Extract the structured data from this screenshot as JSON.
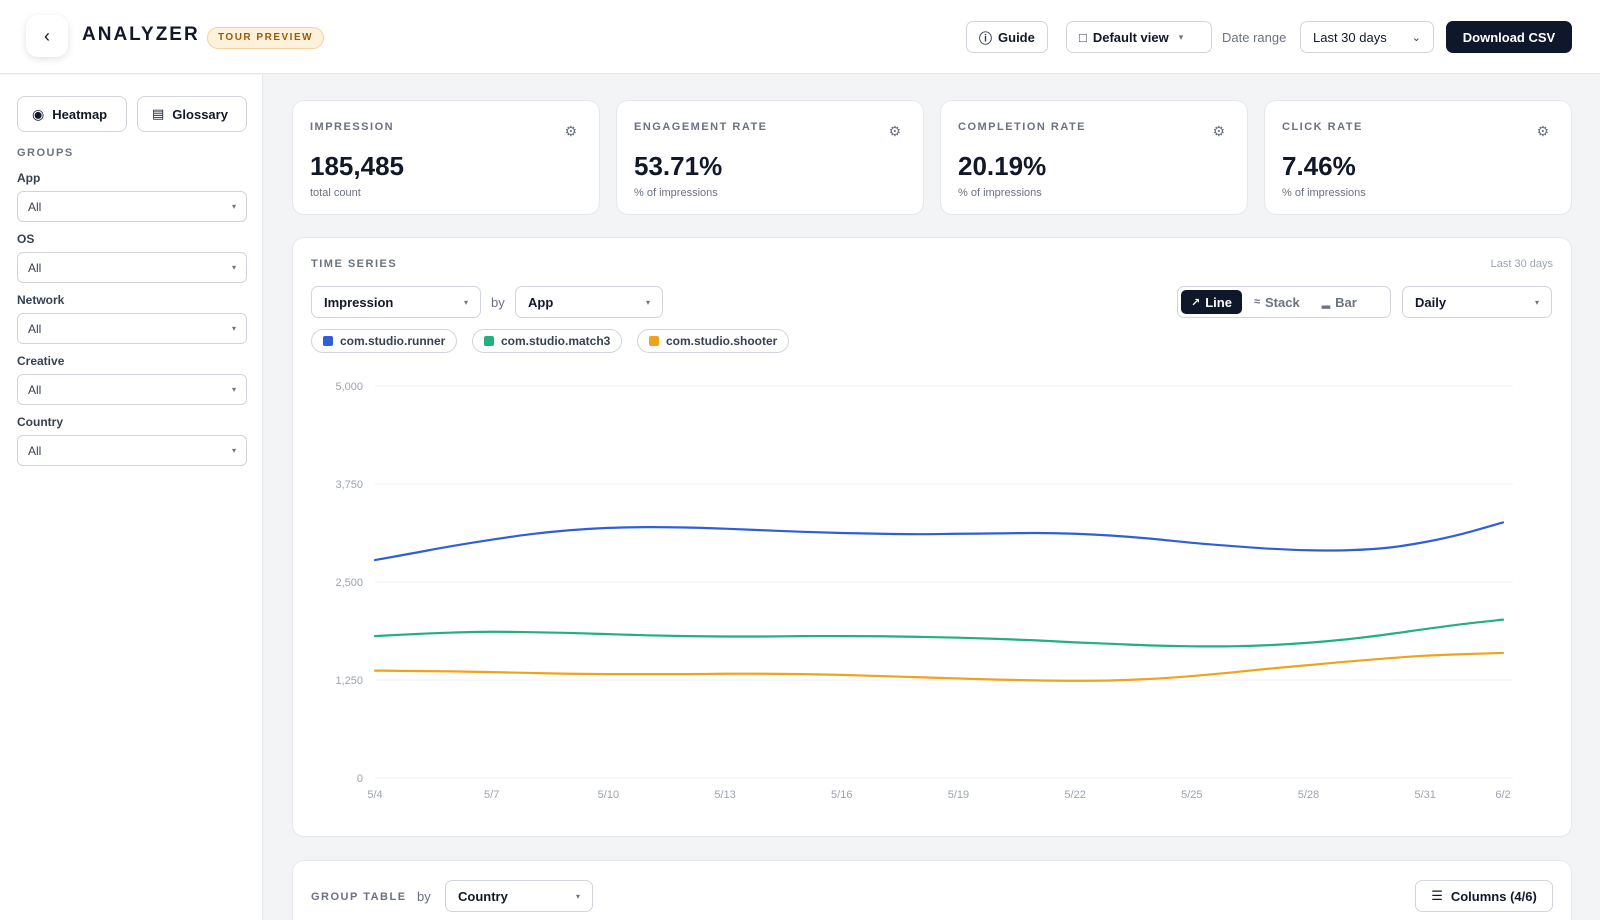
{
  "header": {
    "title": "ANALYZER",
    "badge": "TOUR PREVIEW",
    "guide_label": "Guide",
    "view_label": "Default view",
    "date_range_label": "Date range",
    "date_range_value": "Last 30 days",
    "download_label": "Download CSV"
  },
  "sidebar": {
    "heatmap_label": "Heatmap",
    "glossary_label": "Glossary",
    "groups_title": "GROUPS",
    "filters": [
      {
        "label": "App",
        "value": "All"
      },
      {
        "label": "OS",
        "value": "All"
      },
      {
        "label": "Network",
        "value": "All"
      },
      {
        "label": "Creative",
        "value": "All"
      },
      {
        "label": "Country",
        "value": "All"
      }
    ]
  },
  "kpis": [
    {
      "label": "IMPRESSION",
      "value": "185,485",
      "sub": "total count"
    },
    {
      "label": "ENGAGEMENT RATE",
      "value": "53.71%",
      "sub": "% of impressions"
    },
    {
      "label": "COMPLETION RATE",
      "value": "20.19%",
      "sub": "% of impressions"
    },
    {
      "label": "CLICK RATE",
      "value": "7.46%",
      "sub": "% of impressions"
    }
  ],
  "timeseries": {
    "title": "TIME SERIES",
    "range": "Last 30 days",
    "metric_value": "Impression",
    "by_label": "by",
    "group_value": "App",
    "modes": [
      "Line",
      "Stack",
      "Bar"
    ],
    "active_mode": "Line",
    "granularity": "Daily"
  },
  "chart_data": {
    "type": "line",
    "ylim": [
      0,
      5000
    ],
    "yticks": [
      "5,000",
      "3,750",
      "2,500",
      "1,250",
      "0"
    ],
    "ytick_values": [
      5000,
      3750,
      2500,
      1250,
      0
    ],
    "x": [
      "5/4",
      "5/5",
      "5/6",
      "5/7",
      "5/8",
      "5/9",
      "5/10",
      "5/11",
      "5/12",
      "5/13",
      "5/14",
      "5/15",
      "5/16",
      "5/17",
      "5/18",
      "5/19",
      "5/20",
      "5/21",
      "5/22",
      "5/23",
      "5/24",
      "5/25",
      "5/26",
      "5/27",
      "5/28",
      "5/29",
      "5/30",
      "5/31",
      "6/1",
      "6/2"
    ],
    "xtick_labels": [
      "5/4",
      "5/7",
      "5/10",
      "5/13",
      "5/16",
      "5/19",
      "5/22",
      "5/25",
      "5/28",
      "5/31",
      "6/2"
    ],
    "series": [
      {
        "name": "com.studio.runner",
        "color": "#2f5fd8",
        "values": [
          2780,
          2870,
          2960,
          3040,
          3110,
          3160,
          3190,
          3200,
          3195,
          3180,
          3160,
          3140,
          3125,
          3115,
          3110,
          3115,
          3120,
          3125,
          3115,
          3090,
          3050,
          3000,
          2960,
          2925,
          2905,
          2905,
          2935,
          3010,
          3120,
          3260
        ]
      },
      {
        "name": "com.studio.match3",
        "color": "#22b07d",
        "values": [
          1810,
          1835,
          1855,
          1865,
          1860,
          1850,
          1835,
          1820,
          1810,
          1805,
          1805,
          1810,
          1810,
          1808,
          1800,
          1790,
          1775,
          1755,
          1730,
          1710,
          1690,
          1680,
          1680,
          1695,
          1725,
          1770,
          1830,
          1900,
          1965,
          2020
        ]
      },
      {
        "name": "com.studio.shooter",
        "color": "#f0a21b",
        "values": [
          1370,
          1365,
          1360,
          1350,
          1340,
          1330,
          1325,
          1325,
          1325,
          1330,
          1330,
          1325,
          1315,
          1300,
          1285,
          1270,
          1255,
          1245,
          1240,
          1245,
          1265,
          1300,
          1345,
          1395,
          1440,
          1485,
          1525,
          1560,
          1580,
          1595
        ]
      }
    ]
  },
  "group_table": {
    "title": "GROUP TABLE",
    "by_label": "by",
    "group_value": "Country",
    "columns_label": "Columns (4/6)"
  }
}
